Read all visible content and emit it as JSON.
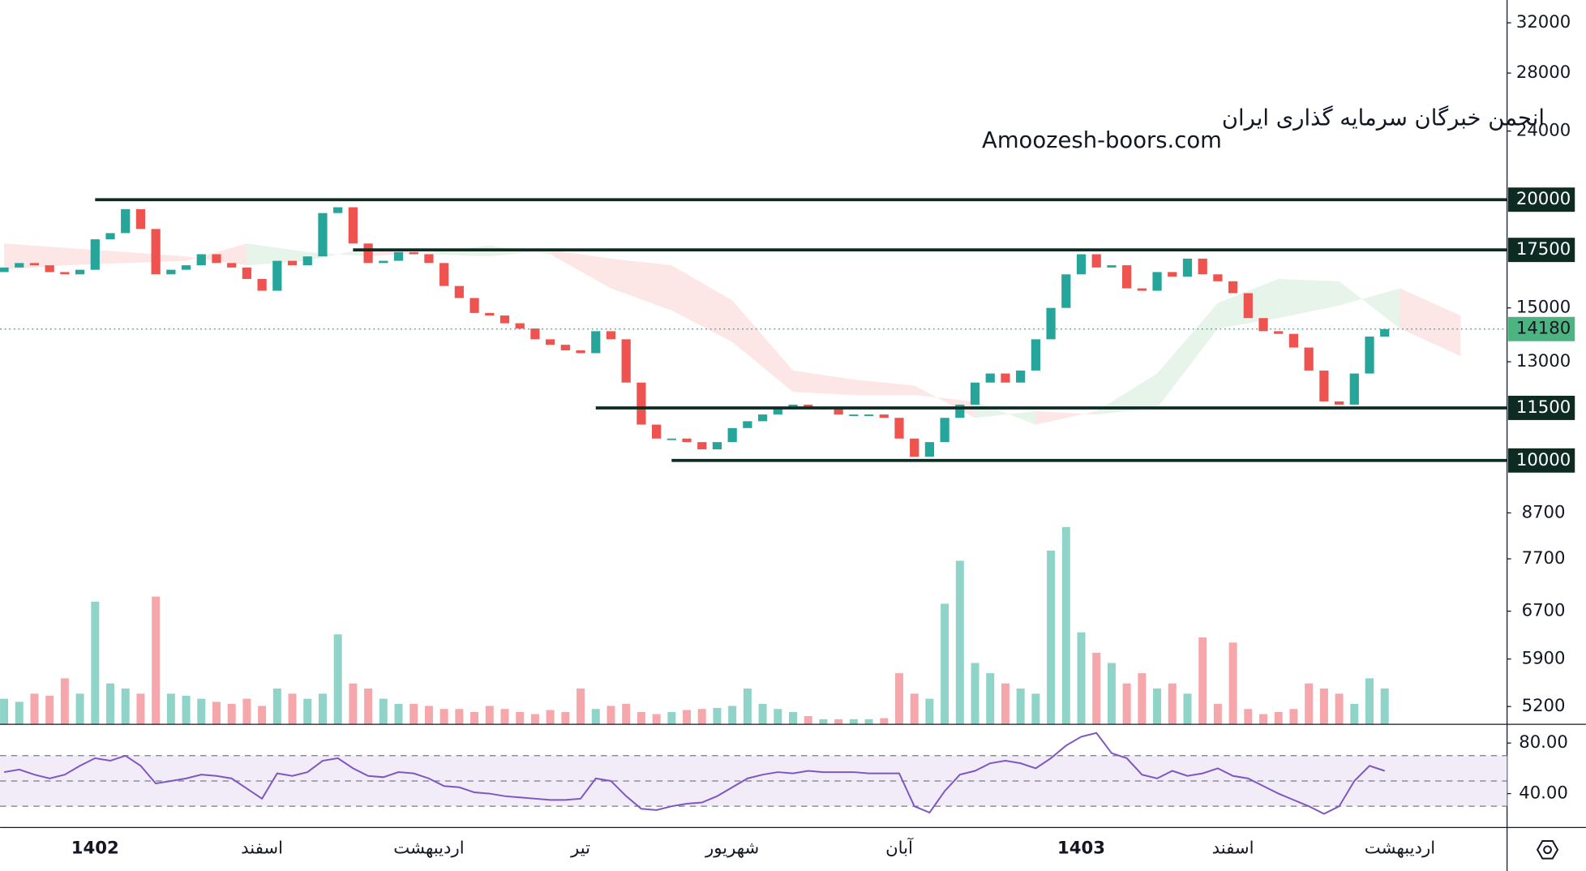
{
  "chart_data": {
    "type": "candlestick",
    "annotations": [
      "انجمن خبرگان سرمایه گذاری ایران",
      "Amoozesh-boors.com"
    ],
    "log": true,
    "ylim": [
      4960,
      34000
    ],
    "yticks": [
      32000,
      28000,
      24000,
      15000,
      13000,
      8700,
      7700,
      6700,
      5900,
      5200
    ],
    "up_color": "#26a69a",
    "down_color": "#ef5350",
    "open": [
      16500,
      16700,
      16900,
      16800,
      16500,
      16400,
      16600,
      18000,
      18300,
      19500,
      18500,
      16400,
      16600,
      16800,
      17300,
      16900,
      16700,
      16200,
      15700,
      17000,
      16800,
      17200,
      19300,
      19600,
      17800,
      16900,
      17000,
      17400,
      17300,
      16900,
      15900,
      15400,
      14800,
      14700,
      14400,
      14200,
      13800,
      13600,
      13400,
      13300,
      14100,
      13800,
      12300,
      11000,
      10600,
      10600,
      10500,
      10300,
      10500,
      10900,
      11100,
      11300,
      11500,
      11600,
      11500,
      11500,
      11300,
      11300,
      11300,
      11200,
      10600,
      10100,
      10500,
      11200,
      11600,
      12300,
      12600,
      12300,
      12700,
      13800,
      15000,
      16400,
      17300,
      16700,
      16800,
      15800,
      15700,
      16500,
      16300,
      17100,
      16400,
      16100,
      15600,
      14600,
      14100,
      14000,
      13500,
      12700,
      11700,
      11600,
      12600,
      13900
    ],
    "close": [
      16700,
      16900,
      16800,
      16500,
      16400,
      16600,
      18000,
      18300,
      19500,
      18500,
      16400,
      16600,
      16800,
      17300,
      16900,
      16700,
      16200,
      15700,
      17000,
      16800,
      17200,
      19300,
      19600,
      17800,
      16900,
      17000,
      17400,
      17300,
      16900,
      15900,
      15400,
      14800,
      14700,
      14400,
      14200,
      13800,
      13600,
      13400,
      13300,
      14100,
      13800,
      12300,
      11000,
      10600,
      10600,
      10500,
      10300,
      10500,
      10900,
      11100,
      11300,
      11500,
      11600,
      11500,
      11500,
      11300,
      11300,
      11300,
      11200,
      10600,
      10100,
      10500,
      11200,
      11600,
      12300,
      12600,
      12300,
      12700,
      13800,
      15000,
      16400,
      17300,
      16700,
      16800,
      15800,
      15700,
      16500,
      16300,
      17100,
      16400,
      16100,
      15600,
      14600,
      14100,
      14000,
      13500,
      12700,
      11700,
      11600,
      12600,
      13900,
      14180
    ],
    "levels": [
      {
        "value": 20000,
        "from_index": 6
      },
      {
        "value": 17500,
        "from_index": 23
      },
      {
        "value": 11500,
        "from_index": 39
      },
      {
        "value": 10000,
        "from_index": 44
      }
    ],
    "last_price": 14180,
    "x_labels": [
      {
        "index": 6,
        "label": "1402",
        "bold": true
      },
      {
        "index": 17,
        "label": "اسفند"
      },
      {
        "index": 28,
        "label": "اردیبهشت"
      },
      {
        "index": 38,
        "label": "تیر"
      },
      {
        "index": 48,
        "label": "شهریور"
      },
      {
        "index": 59,
        "label": "آبان"
      },
      {
        "index": 71,
        "label": "1403",
        "bold": true
      },
      {
        "index": 81,
        "label": "اسفند"
      },
      {
        "index": 92,
        "label": "اردیبهشت"
      }
    ],
    "cloud": {
      "index": [
        0,
        4,
        8,
        12,
        16,
        20,
        24,
        28,
        32,
        36,
        40,
        44,
        48,
        52,
        56,
        60,
        64,
        68,
        72,
        76,
        80,
        84,
        88,
        92,
        96
      ],
      "span_a": [
        16600,
        16800,
        16900,
        17000,
        17800,
        17400,
        17200,
        17400,
        17700,
        17300,
        15800,
        14900,
        13700,
        12000,
        11900,
        11900,
        11700,
        11000,
        11400,
        12600,
        15200,
        16200,
        16100,
        14200,
        13200
      ],
      "span_b": [
        17800,
        17600,
        17400,
        17200,
        16800,
        17000,
        17600,
        17300,
        17200,
        17500,
        17100,
        16800,
        15300,
        12700,
        12400,
        12200,
        11200,
        11400,
        11300,
        11500,
        14200,
        14600,
        15100,
        15800,
        14700
      ]
    },
    "volume": {
      "values": [
        25,
        22,
        30,
        28,
        45,
        30,
        120,
        40,
        35,
        30,
        125,
        30,
        28,
        25,
        22,
        20,
        25,
        18,
        35,
        30,
        25,
        30,
        88,
        40,
        35,
        25,
        20,
        20,
        18,
        15,
        15,
        12,
        18,
        15,
        12,
        10,
        14,
        12,
        35,
        15,
        18,
        20,
        12,
        10,
        12,
        14,
        15,
        16,
        18,
        35,
        20,
        15,
        12,
        8,
        5,
        5,
        5,
        5,
        6,
        50,
        30,
        25,
        118,
        160,
        60,
        50,
        40,
        35,
        30,
        170,
        193,
        90,
        70,
        60,
        40,
        50,
        35,
        40,
        30,
        85,
        20,
        80,
        15,
        10,
        12,
        15,
        40,
        35,
        30,
        20,
        45,
        35
      ]
    },
    "rsi": {
      "values": [
        57,
        59,
        55,
        52,
        55,
        62,
        68,
        66,
        70,
        62,
        48,
        50,
        52,
        55,
        54,
        52,
        44,
        36,
        56,
        54,
        57,
        66,
        68,
        60,
        54,
        53,
        57,
        56,
        52,
        46,
        45,
        41,
        40,
        38,
        37,
        36,
        35,
        35,
        36,
        52,
        50,
        38,
        28,
        27,
        30,
        32,
        33,
        38,
        45,
        52,
        55,
        57,
        56,
        58,
        57,
        57,
        57,
        56,
        56,
        56,
        30,
        25,
        42,
        55,
        58,
        64,
        66,
        64,
        60,
        68,
        78,
        85,
        88,
        72,
        68,
        55,
        52,
        58,
        54,
        56,
        60,
        54,
        52,
        46,
        40,
        35,
        30,
        24,
        30,
        50,
        62,
        58
      ],
      "ylim": [
        13.2,
        94.8
      ],
      "yticks": [
        {
          "value": 80,
          "label": "80.00"
        },
        {
          "value": 40,
          "label": "40.00"
        }
      ],
      "levels": [
        30,
        50,
        70
      ],
      "color": "#7e57c2"
    }
  }
}
